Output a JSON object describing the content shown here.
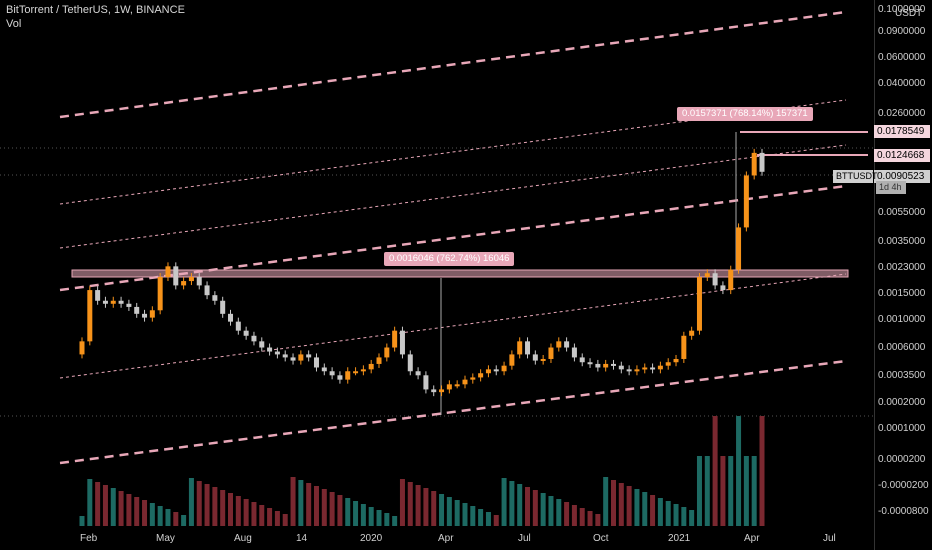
{
  "header": {
    "symbol": "BitTorrent / TetherUS, 1W, BINANCE",
    "indicator": "Vol"
  },
  "axis": {
    "currency": "USDT",
    "labels": [
      "0.1000000",
      "0.0900000",
      "0.0600000",
      "0.0400000",
      "0.0260000",
      "0.0055000",
      "0.0035000",
      "0.0023000",
      "0.0015000",
      "0.0010000",
      "0.0006000",
      "0.0003500",
      "0.0002000",
      "0.0001000",
      "0.0000200",
      "-0.0000200",
      "-0.0000800"
    ]
  },
  "price_labels": {
    "high": "0.0178549",
    "last_high": "0.0124668",
    "current_name": "BTTUSDT",
    "current_value": "0.0090523",
    "countdown": "1d 4h"
  },
  "measurements": {
    "upper": "0.0157371 (768.14%) 157371",
    "lower": "0.0016046 (762.74%) 16046"
  },
  "x_axis": [
    "Feb",
    "May",
    "Aug",
    "14",
    "2020",
    "Apr",
    "Jul",
    "Oct",
    "2021",
    "Apr",
    "Jul"
  ],
  "colors": {
    "up": "#f7931a",
    "down": "#c8c8c8",
    "vol_up": "#1d6a63",
    "vol_down": "#7a2830",
    "channel": "#e8a7b8"
  },
  "chart_data": {
    "type": "candlestick",
    "title": "BitTorrent / TetherUS, 1W, BINANCE",
    "series": [
      {
        "name": "BTTUSDT",
        "closes": [
          0.0005,
          0.0012,
          0.001,
          0.00095,
          0.001,
          0.00095,
          0.0009,
          0.0008,
          0.00075,
          0.00085,
          0.0015,
          0.0018,
          0.0013,
          0.0014,
          0.0015,
          0.0013,
          0.0011,
          0.001,
          0.0008,
          0.0007,
          0.0006,
          0.00055,
          0.0005,
          0.00045,
          0.00042,
          0.0004,
          0.00038,
          0.00036,
          0.0004,
          0.00038,
          0.00032,
          0.0003,
          0.00028,
          0.00026,
          0.0003,
          0.0003,
          0.00031,
          0.00034,
          0.00038,
          0.00045,
          0.0006,
          0.0004,
          0.0003,
          0.00028,
          0.00022,
          0.00021,
          0.00022,
          0.00024,
          0.00024,
          0.00026,
          0.00027,
          0.00029,
          0.00031,
          0.0003,
          0.00033,
          0.0004,
          0.0005,
          0.0004,
          0.00036,
          0.00037,
          0.00045,
          0.0005,
          0.00045,
          0.00038,
          0.00035,
          0.00034,
          0.00032,
          0.00034,
          0.00033,
          0.00031,
          0.0003,
          0.00031,
          0.00032,
          0.00031,
          0.00033,
          0.00035,
          0.00037,
          0.00055,
          0.0006,
          0.0015,
          0.0016,
          0.0013,
          0.0012,
          0.0017,
          0.0035,
          0.0085,
          0.0125,
          0.00905
        ]
      }
    ]
  }
}
